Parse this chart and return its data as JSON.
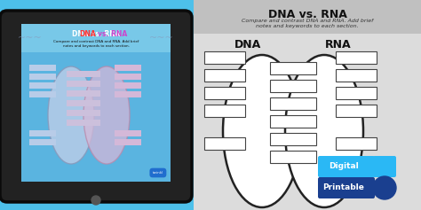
{
  "bg_color": "#4dc0ea",
  "title": "DNA vs. RNA",
  "subtitle_line1": "Compare and contrast DNA and RNA. Add brief",
  "subtitle_line2": "notes and keywords to each section.",
  "title_fontsize": 9,
  "subtitle_fontsize": 4.5,
  "dna_label": "DNA",
  "rna_label": "RNA",
  "label_fontsize": 9,
  "worksheet_bg": "#dcdcdc",
  "header_bg": "#c0c0c0",
  "box_color": "#ffffff",
  "box_edge": "#444444",
  "ellipse_edge": "#222222",
  "digital_color": "#2ab8f5",
  "digital_icon_color": "#2ab8f5",
  "printable_color": "#1a3f8f",
  "printable_icon_color": "#1a3f8f",
  "tablet_body_color": "#1a1a1a",
  "tablet_screen_bg": "#5ab4e0",
  "tablet_venn_left_fill": "#b8cce8",
  "tablet_venn_right_fill": "#d4b8d8",
  "tablet_dna_box_fill": "#b8cce8",
  "tablet_rna_box_fill": "#d4b8d8",
  "tablet_mid_box_fill": "#ccc0dc"
}
